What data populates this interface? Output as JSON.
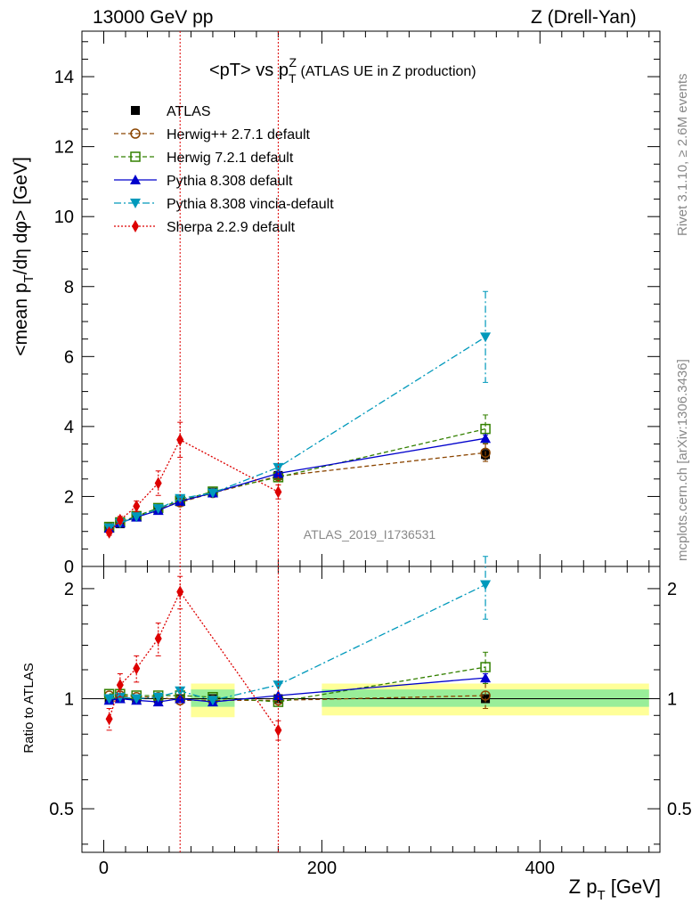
{
  "header": {
    "left": "13000 GeV pp",
    "right": "Z (Drell-Yan)"
  },
  "side_text": {
    "rivet": "Rivet 3.1.10, ≥ 2.6M events",
    "mcplots": "mcplots.cern.ch [arXiv:1306.3436]"
  },
  "chart_data": [
    {
      "type": "scatter",
      "title": "<pT> vs pTZ (ATLAS UE in Z production)",
      "ylabel": "<mean pT/dη dφ> [GeV]",
      "xlabel": "Z pT [GeV]",
      "watermark": "ATLAS_2019_I1736531",
      "xlim": [
        -20,
        510
      ],
      "ylim": [
        0,
        15.3
      ],
      "yticks": [
        0,
        2,
        4,
        6,
        8,
        10,
        12,
        14
      ],
      "xticks": [
        0,
        200,
        400
      ],
      "vlines": [
        70,
        160
      ],
      "series": [
        {
          "name": "ATLAS",
          "color": "#000000",
          "marker": "square-filled",
          "x": [
            5,
            15,
            30,
            50,
            70,
            100,
            160,
            350
          ],
          "y": [
            1.1,
            1.22,
            1.42,
            1.63,
            1.85,
            2.12,
            2.6,
            3.2
          ],
          "yerr": [
            0.02,
            0.02,
            0.03,
            0.04,
            0.05,
            0.06,
            0.09,
            0.14
          ]
        },
        {
          "name": "Herwig++ 2.7.1 default",
          "color": "#8b4500",
          "marker": "circle-open",
          "line": "dashed",
          "x": [
            5,
            15,
            30,
            50,
            70,
            100,
            160,
            350
          ],
          "y": [
            1.12,
            1.25,
            1.43,
            1.64,
            1.83,
            2.1,
            2.58,
            3.25
          ],
          "yerr": [
            0.01,
            0.01,
            0.01,
            0.02,
            0.03,
            0.04,
            0.06,
            0.25
          ]
        },
        {
          "name": "Herwig 7.2.1 default",
          "color": "#338000",
          "marker": "square-open",
          "line": "dashed",
          "x": [
            5,
            15,
            30,
            50,
            70,
            100,
            160,
            350
          ],
          "y": [
            1.13,
            1.26,
            1.44,
            1.67,
            1.88,
            2.14,
            2.55,
            3.93
          ],
          "yerr": [
            0.01,
            0.01,
            0.01,
            0.02,
            0.03,
            0.04,
            0.06,
            0.4
          ]
        },
        {
          "name": "Pythia 8.308 default",
          "color": "#0000cc",
          "marker": "triangle-up",
          "line": "solid",
          "x": [
            5,
            15,
            30,
            50,
            70,
            100,
            160,
            350
          ],
          "y": [
            1.09,
            1.24,
            1.41,
            1.6,
            1.86,
            2.1,
            2.66,
            3.66
          ],
          "yerr": [
            0.01,
            0.01,
            0.01,
            0.02,
            0.03,
            0.04,
            0.06,
            0.1
          ]
        },
        {
          "name": "Pythia 8.308 vincia-default",
          "color": "#0099bb",
          "marker": "triangle-down",
          "line": "dashdot",
          "x": [
            5,
            15,
            30,
            50,
            70,
            100,
            160,
            350
          ],
          "y": [
            1.1,
            1.24,
            1.42,
            1.65,
            1.94,
            2.1,
            2.83,
            6.56
          ],
          "yerr": [
            0.01,
            0.01,
            0.01,
            0.02,
            0.03,
            0.04,
            0.06,
            1.3
          ]
        },
        {
          "name": "Sherpa 2.2.9 default",
          "color": "#dd0000",
          "marker": "diamond",
          "line": "dotted",
          "x": [
            5,
            15,
            30,
            50,
            70,
            100,
            160,
            350
          ],
          "y": [
            0.97,
            1.33,
            1.72,
            2.38,
            3.62,
            null,
            2.13,
            null
          ],
          "yerr": [
            0.08,
            0.1,
            0.15,
            0.35,
            0.5,
            0,
            0.2,
            0
          ]
        }
      ]
    },
    {
      "type": "scatter",
      "ylabel": "Ratio to ATLAS",
      "xlabel": "Z pT [GeV]",
      "xlim": [
        -20,
        510
      ],
      "ylim": [
        0.38,
        2.3
      ],
      "yticks": [
        0.5,
        1,
        2
      ],
      "xticks": [
        0,
        200,
        400
      ],
      "bands": [
        {
          "x": [
            80,
            120
          ],
          "stat": [
            0.95,
            1.06
          ],
          "total": [
            0.89,
            1.1
          ]
        },
        {
          "x": [
            200,
            500
          ],
          "stat": [
            0.95,
            1.06
          ],
          "total": [
            0.9,
            1.1
          ]
        }
      ],
      "series": [
        {
          "name": "Herwig++ 2.7.1 default",
          "x": [
            5,
            15,
            30,
            50,
            70,
            100,
            160,
            350
          ],
          "y": [
            1.02,
            1.02,
            1.01,
            1.01,
            0.99,
            0.99,
            0.99,
            1.02
          ],
          "yerr": [
            0,
            0,
            0,
            0,
            0,
            0,
            0,
            0.08
          ]
        },
        {
          "name": "Herwig 7.2.1 default",
          "x": [
            5,
            15,
            30,
            50,
            70,
            100,
            160,
            350
          ],
          "y": [
            1.03,
            1.03,
            1.02,
            1.02,
            1.02,
            1.01,
            0.98,
            1.22
          ],
          "yerr": [
            0,
            0,
            0,
            0,
            0,
            0,
            0,
            0.12
          ]
        },
        {
          "name": "Pythia 8.308 default",
          "x": [
            5,
            15,
            30,
            50,
            70,
            100,
            160,
            350
          ],
          "y": [
            0.99,
            1.0,
            0.99,
            0.98,
            1.0,
            0.98,
            1.02,
            1.14
          ],
          "yerr": [
            0,
            0,
            0,
            0,
            0,
            0,
            0,
            0.03
          ]
        },
        {
          "name": "Pythia 8.308 vincia-default",
          "x": [
            5,
            15,
            30,
            50,
            70,
            100,
            160,
            350
          ],
          "y": [
            1.0,
            1.01,
            1.0,
            1.01,
            1.05,
            0.99,
            1.09,
            2.05
          ],
          "yerr": [
            0,
            0,
            0,
            0,
            0,
            0,
            0,
            0.4
          ]
        },
        {
          "name": "Sherpa 2.2.9 default",
          "x": [
            5,
            15,
            30,
            50,
            70,
            160
          ],
          "y": [
            0.88,
            1.09,
            1.21,
            1.46,
            1.96,
            0.82
          ],
          "yerr": [
            0.06,
            0.08,
            0.1,
            0.15,
            0.2,
            0.05
          ]
        }
      ]
    }
  ]
}
